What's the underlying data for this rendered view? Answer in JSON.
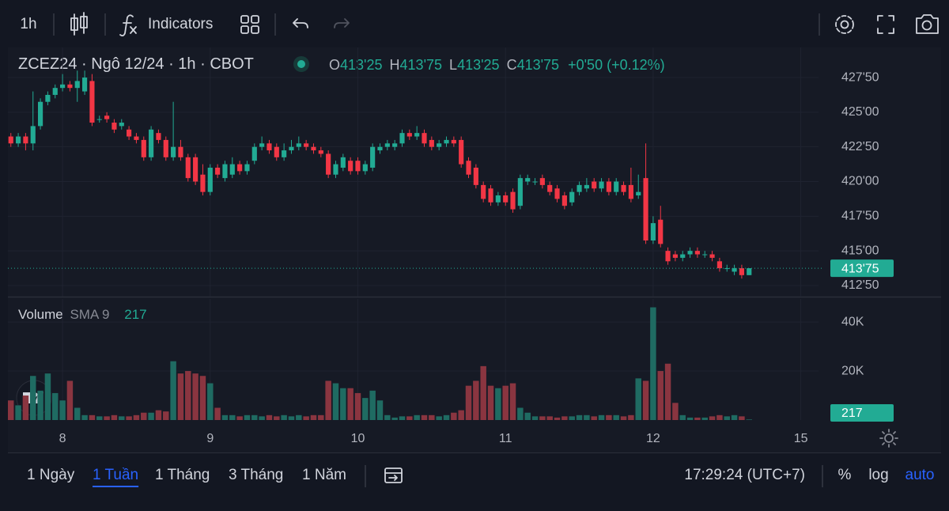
{
  "toolbar": {
    "interval": "1h",
    "indicators": "Indicators"
  },
  "legend": {
    "symbol": "ZCEZ24 · Ngô 12/24 · 1h · CBOT",
    "o_label": "O",
    "open": "413'25",
    "h_label": "H",
    "high": "413'75",
    "l_label": "L",
    "low": "413'25",
    "c_label": "C",
    "close": "413'75",
    "change": "+0'50 (+0.12%)"
  },
  "chart_data": [
    {
      "type": "candlestick",
      "up_color": "#22ab94",
      "down_color": "#f23645",
      "grid": true,
      "xlim": [
        -0.4,
        109.4
      ],
      "xticks": [
        {
          "value": 7,
          "label": "8"
        },
        {
          "value": 27,
          "label": "9"
        },
        {
          "value": 47,
          "label": "10"
        },
        {
          "value": 67,
          "label": "11"
        },
        {
          "value": 87,
          "label": "12"
        },
        {
          "value": 107,
          "label": "15"
        }
      ],
      "ylim": [
        411.7,
        429.67
      ],
      "yticks": [
        {
          "value": 427.5,
          "label": "427'50"
        },
        {
          "value": 425,
          "label": "425'00"
        },
        {
          "value": 422.5,
          "label": "422'50"
        },
        {
          "value": 420,
          "label": "420'00"
        },
        {
          "value": 417.5,
          "label": "417'50"
        },
        {
          "value": 415,
          "label": "415'00"
        },
        {
          "value": 412.5,
          "label": "412'50"
        }
      ],
      "last_price": {
        "value": 413.75,
        "label": "413'75"
      },
      "open": [
        423.25,
        422.75,
        423.25,
        422.75,
        424,
        425.75,
        426.25,
        426.75,
        427,
        426.75,
        426.5,
        427.25,
        424.5,
        424.75,
        424.25,
        424,
        423.75,
        423.25,
        423,
        421.75,
        423.5,
        423,
        421.75,
        422.5,
        421.75,
        421.75,
        420.5,
        419.25,
        421,
        420.25,
        420.5,
        421.25,
        420.75,
        421.5,
        422.5,
        422.75,
        422.5,
        421.75,
        422.25,
        422.5,
        422.75,
        422.5,
        422.25,
        422,
        420.5,
        421,
        421.5,
        421.5,
        420.75,
        421,
        422.25,
        422.5,
        422.5,
        422.75,
        423.5,
        423.25,
        423.5,
        423,
        422.5,
        422.75,
        423,
        423,
        421.5,
        421,
        419.75,
        419.5,
        418.5,
        419,
        419.25,
        418.25,
        420,
        420,
        420.25,
        419.75,
        419.5,
        419,
        418.5,
        419.25,
        419.5,
        420,
        419.5,
        420,
        419.25,
        419.75,
        419.75,
        419,
        420.25,
        415.75,
        417.25,
        415,
        414.75,
        414.5,
        414.75,
        415,
        414.75,
        414.75,
        414.25,
        413.75,
        413.5,
        413.75,
        413.25
      ],
      "high": [
        423.5,
        423.5,
        423.5,
        426.5,
        426,
        426.5,
        427,
        427.75,
        427.25,
        428,
        428,
        427.75,
        424.75,
        425,
        424.5,
        424.5,
        424,
        423.5,
        423.25,
        424,
        423.75,
        423.25,
        425.75,
        423,
        422,
        422,
        421.25,
        421.25,
        421.25,
        421.5,
        421.75,
        421.5,
        421.5,
        422.75,
        423.25,
        423,
        422.75,
        422.75,
        423,
        423.25,
        423,
        422.75,
        422.5,
        422.25,
        421.5,
        422,
        421.75,
        421.75,
        421.5,
        422.75,
        422.75,
        423,
        423,
        423.75,
        423.75,
        424,
        423.75,
        423.25,
        423,
        423.25,
        423.25,
        423.25,
        421.75,
        421.25,
        420,
        419.75,
        419.25,
        419.25,
        419.5,
        420.5,
        420.5,
        420.25,
        420.5,
        420,
        419.75,
        419.25,
        419.5,
        420,
        420.25,
        420.25,
        420.25,
        420.25,
        420.25,
        420,
        421,
        420.5,
        422.75,
        417.5,
        418.25,
        415.25,
        415,
        415,
        415.25,
        415.25,
        415,
        415,
        414.5,
        414,
        414,
        414,
        413.75
      ],
      "low": [
        422.5,
        422.5,
        422.25,
        422.25,
        423.75,
        425.5,
        426,
        426.5,
        426.5,
        425.75,
        426.25,
        424,
        424.25,
        424.25,
        423.5,
        423.75,
        423,
        422.75,
        421.5,
        421.5,
        422.75,
        421.5,
        421.5,
        421.5,
        420,
        419.75,
        419,
        419,
        420.25,
        420,
        420.25,
        420.5,
        420.5,
        421.25,
        422.25,
        422,
        421.5,
        421.5,
        422,
        422.25,
        422.25,
        422,
        421.75,
        420.25,
        420.25,
        420.75,
        420.5,
        420.5,
        420.5,
        420.75,
        422,
        422.25,
        422.25,
        422.5,
        423,
        423,
        422.5,
        422.25,
        422.25,
        422.5,
        422.5,
        421,
        420.25,
        419.5,
        418.5,
        418.25,
        418.25,
        418.25,
        417.75,
        418,
        419.75,
        419.75,
        419.5,
        419,
        418.5,
        418,
        418.25,
        419,
        419.25,
        419.25,
        419.25,
        419,
        419,
        419,
        418.5,
        418.75,
        415.5,
        415.5,
        415.25,
        414,
        414.25,
        414.25,
        414.5,
        414.5,
        414.5,
        414.25,
        413.5,
        413.5,
        413.25,
        413,
        413.25
      ],
      "close": [
        422.75,
        423.25,
        422.75,
        424,
        425.75,
        426.25,
        426.75,
        427,
        426.75,
        427.25,
        427.5,
        424.25,
        424.5,
        424.5,
        423.75,
        424.25,
        423.25,
        423,
        421.75,
        423.75,
        423,
        421.75,
        422.5,
        421.75,
        420.25,
        420,
        419.25,
        421,
        420.5,
        421.25,
        421.25,
        420.75,
        421.25,
        422.5,
        422.75,
        422.25,
        421.75,
        422.25,
        422.5,
        422.75,
        422.5,
        422.25,
        422,
        420.5,
        421.25,
        421.75,
        420.75,
        420.75,
        421.25,
        422.5,
        422.5,
        422.75,
        422.75,
        423.5,
        423.25,
        423.5,
        422.75,
        422.5,
        422.75,
        423,
        422.75,
        421.25,
        420.5,
        419.75,
        418.75,
        418.5,
        419,
        418.5,
        418,
        420.25,
        420.25,
        420,
        419.75,
        419.25,
        418.75,
        418.25,
        419.25,
        419.75,
        419.75,
        419.5,
        420,
        419.25,
        420,
        419.25,
        418.75,
        419.25,
        415.75,
        417,
        415.5,
        414.25,
        414.5,
        414.75,
        415,
        414.75,
        414.75,
        414.5,
        413.75,
        413.75,
        413.75,
        413.25,
        413.75
      ]
    },
    {
      "type": "bar",
      "legend": {
        "name": "Volume",
        "indicator": "SMA 9"
      },
      "up_color": "#1f6b62",
      "down_color": "#8a3540",
      "ylim": [
        0,
        49400
      ],
      "yticks": [
        {
          "value": 20000,
          "label": "20K"
        },
        {
          "value": 40000,
          "label": "40K"
        }
      ],
      "last_value": {
        "value": 217,
        "label": "217"
      },
      "values": [
        8000,
        6000,
        10000,
        18000,
        12000,
        19000,
        11000,
        8000,
        16000,
        5000,
        2000,
        2000,
        1500,
        1500,
        2000,
        1500,
        1500,
        2000,
        3000,
        3000,
        4000,
        3500,
        24000,
        19000,
        20000,
        19000,
        18000,
        15000,
        5000,
        2000,
        2000,
        1500,
        2000,
        2000,
        1500,
        2000,
        1500,
        2000,
        1500,
        2000,
        1500,
        2000,
        2000,
        16000,
        15000,
        13000,
        13000,
        11000,
        9000,
        12000,
        8000,
        2000,
        1000,
        1500,
        1500,
        2000,
        2000,
        2000,
        1500,
        2000,
        3000,
        4000,
        14000,
        16000,
        22000,
        14000,
        13000,
        14000,
        15000,
        5000,
        3000,
        1500,
        1500,
        1500,
        1000,
        1500,
        1500,
        2000,
        2000,
        1500,
        2000,
        2000,
        2000,
        1500,
        2000,
        17000,
        16000,
        46000,
        20000,
        23000,
        7000,
        2000,
        1000,
        1000,
        1000,
        1500,
        2000,
        1500,
        2000,
        1500,
        217
      ]
    }
  ],
  "bottom_bar": {
    "ranges": [
      "1 Ngày",
      "1 Tuần",
      "1 Tháng",
      "3 Tháng",
      "1 Năm"
    ],
    "active_range": 1,
    "time": "17:29:24 (UTC+7)",
    "percent": "%",
    "log": "log",
    "auto": "auto"
  }
}
